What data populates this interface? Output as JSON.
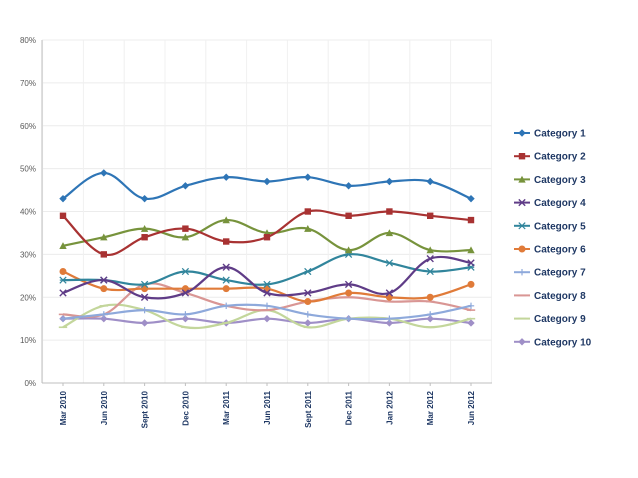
{
  "chart_data": {
    "type": "line",
    "title": "",
    "xlabel": "",
    "ylabel": "",
    "categories": [
      "Mar 2010",
      "Jun 2010",
      "Sept 2010",
      "Dec 2010",
      "Mar 2011",
      "Jun 2011",
      "Sept 2011",
      "Dec 2011",
      "Jan 2012",
      "Mar 2012",
      "Jun 2012"
    ],
    "ylim": [
      0,
      80
    ],
    "y_ticks": [
      "0%",
      "10%",
      "20%",
      "30%",
      "40%",
      "50%",
      "60%",
      "70%",
      "80%"
    ],
    "grid": true,
    "legend_position": "right",
    "series": [
      {
        "name": "Category 1",
        "color": "#2e75b6",
        "marker": "diamond",
        "values": [
          43,
          49,
          43,
          46,
          48,
          47,
          48,
          46,
          47,
          47,
          43
        ]
      },
      {
        "name": "Category 2",
        "color": "#a83232",
        "marker": "square",
        "values": [
          39,
          30,
          34,
          36,
          33,
          34,
          40,
          39,
          40,
          39,
          38
        ]
      },
      {
        "name": "Category 3",
        "color": "#77933c",
        "marker": "triangle",
        "values": [
          32,
          34,
          36,
          34,
          38,
          35,
          36,
          31,
          35,
          31,
          31
        ]
      },
      {
        "name": "Category 4",
        "color": "#5f3c87",
        "marker": "x",
        "values": [
          21,
          24,
          20,
          21,
          27,
          21,
          21,
          23,
          21,
          29,
          28
        ]
      },
      {
        "name": "Category 5",
        "color": "#31859c",
        "marker": "asterisk",
        "values": [
          24,
          24,
          23,
          26,
          24,
          23,
          26,
          30,
          28,
          26,
          27
        ]
      },
      {
        "name": "Category 6",
        "color": "#e07b39",
        "marker": "circle",
        "values": [
          26,
          22,
          22,
          22,
          22,
          22,
          19,
          21,
          20,
          20,
          23
        ]
      },
      {
        "name": "Category 7",
        "color": "#8ea9db",
        "marker": "plus",
        "values": [
          15,
          16,
          17,
          16,
          18,
          18,
          16,
          15,
          15,
          16,
          18
        ]
      },
      {
        "name": "Category 8",
        "color": "#d99694",
        "marker": "dash",
        "values": [
          16,
          16,
          23,
          21,
          18,
          17,
          19,
          20,
          19,
          19,
          17
        ]
      },
      {
        "name": "Category 9",
        "color": "#c3d69b",
        "marker": "dash",
        "values": [
          13,
          18,
          17,
          13,
          14,
          17,
          13,
          15,
          15,
          13,
          15
        ]
      },
      {
        "name": "Category 10",
        "color": "#9f8fc7",
        "marker": "diamond",
        "values": [
          15,
          15,
          14,
          15,
          14,
          15,
          14,
          15,
          14,
          15,
          14
        ]
      }
    ]
  }
}
